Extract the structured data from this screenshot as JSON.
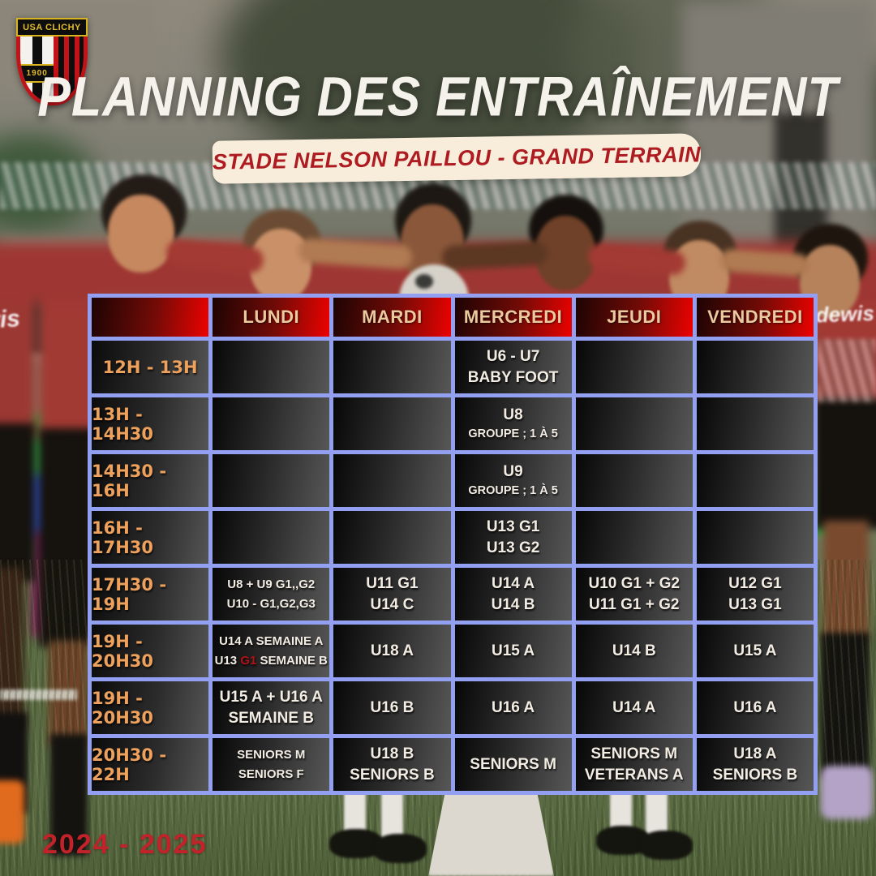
{
  "logo": {
    "club_name": "USA CLICHY",
    "founded_year": "1900"
  },
  "header": {
    "title": "PLANNING DES ENTRAÎNEMENT",
    "subtitle": "STADE NELSON PAILLOU - GRAND TERRAIN"
  },
  "season": "2024 - 2025",
  "photo": {
    "jersey_text": "dewis"
  },
  "colors": {
    "table_border": "#93a0f2",
    "header_cell_red": "#ec0200",
    "day_header_text": "#eccaa0",
    "time_text": "#eda15c",
    "cell_text": "#f2ece3",
    "highlight_red": "#b01215",
    "banner_bg": "#f8edda",
    "banner_text": "#ae1c22",
    "season_text": "#c2232b",
    "logo_red": "#c41318",
    "logo_yellow": "#e3bd2a"
  },
  "table": {
    "day_headers": [
      "LUNDI",
      "MARDI",
      "MERCREDI",
      "JEUDI",
      "VENDREDI"
    ],
    "rows": [
      {
        "time": "12H - 13H",
        "cells": [
          {
            "lines": []
          },
          {
            "lines": []
          },
          {
            "lines": [
              {
                "text": "U6 - U7"
              },
              {
                "text": "BABY FOOT"
              }
            ]
          },
          {
            "lines": []
          },
          {
            "lines": []
          }
        ]
      },
      {
        "time": "13H - 14H30",
        "cells": [
          {
            "lines": []
          },
          {
            "lines": []
          },
          {
            "lines": [
              {
                "text": "U8"
              },
              {
                "text": "GROUPE ; 1 À 5",
                "small": true
              }
            ]
          },
          {
            "lines": []
          },
          {
            "lines": []
          }
        ]
      },
      {
        "time": "14H30 - 16H",
        "cells": [
          {
            "lines": []
          },
          {
            "lines": []
          },
          {
            "lines": [
              {
                "text": "U9"
              },
              {
                "text": "GROUPE ; 1 À 5",
                "small": true
              }
            ]
          },
          {
            "lines": []
          },
          {
            "lines": []
          }
        ]
      },
      {
        "time": "16H - 17H30",
        "cells": [
          {
            "lines": []
          },
          {
            "lines": []
          },
          {
            "lines": [
              {
                "text": "U13 G1"
              },
              {
                "text": "U13 G2"
              }
            ]
          },
          {
            "lines": []
          },
          {
            "lines": []
          }
        ]
      },
      {
        "time": "17H30 - 19H",
        "cells": [
          {
            "sm": true,
            "lines": [
              {
                "text": "U8 + U9 G1,,G2"
              },
              {
                "text": "U10 - G1,G2,G3"
              }
            ]
          },
          {
            "lines": [
              {
                "text": "U11 G1"
              },
              {
                "text": "U14 C"
              }
            ]
          },
          {
            "lines": [
              {
                "text": "U14 A"
              },
              {
                "text": "U14 B"
              }
            ]
          },
          {
            "lines": [
              {
                "text": "U10 G1 + G2"
              },
              {
                "text": "U11 G1 + G2"
              }
            ]
          },
          {
            "lines": [
              {
                "text": "U12 G1"
              },
              {
                "text": "U13 G1"
              }
            ]
          }
        ]
      },
      {
        "time": "19H - 20H30",
        "cells": [
          {
            "sm": true,
            "lines": [
              {
                "text": "U14 A SEMAINE A"
              },
              {
                "parts": [
                  {
                    "text": "U13 "
                  },
                  {
                    "text": "G1",
                    "hl": true
                  },
                  {
                    "text": " SEMAINE B"
                  }
                ]
              }
            ]
          },
          {
            "lines": [
              {
                "text": "U18 A"
              }
            ]
          },
          {
            "lines": [
              {
                "text": "U15 A"
              }
            ]
          },
          {
            "lines": [
              {
                "text": "U14 B"
              }
            ]
          },
          {
            "lines": [
              {
                "text": "U15 A"
              }
            ]
          }
        ]
      },
      {
        "time": "19H - 20H30",
        "cells": [
          {
            "lines": [
              {
                "text": "U15 A + U16 A"
              },
              {
                "text": "SEMAINE B"
              }
            ]
          },
          {
            "lines": [
              {
                "text": "U16 B"
              }
            ]
          },
          {
            "lines": [
              {
                "text": "U16 A"
              }
            ]
          },
          {
            "lines": [
              {
                "text": "U14 A"
              }
            ]
          },
          {
            "lines": [
              {
                "text": "U16 A"
              }
            ]
          }
        ]
      },
      {
        "time": "20H30 - 22H",
        "cells": [
          {
            "sm": true,
            "lines": [
              {
                "text": "SENIORS M"
              },
              {
                "text": "SENIORS F"
              }
            ]
          },
          {
            "lines": [
              {
                "text": "U18 B"
              },
              {
                "text": "SENIORS B"
              }
            ]
          },
          {
            "lines": [
              {
                "text": "SENIORS M"
              }
            ]
          },
          {
            "lines": [
              {
                "text": "SENIORS M"
              },
              {
                "text": "VETERANS A"
              }
            ]
          },
          {
            "lines": [
              {
                "text": "U18 A"
              },
              {
                "text": "SENIORS B"
              }
            ]
          }
        ]
      }
    ]
  }
}
